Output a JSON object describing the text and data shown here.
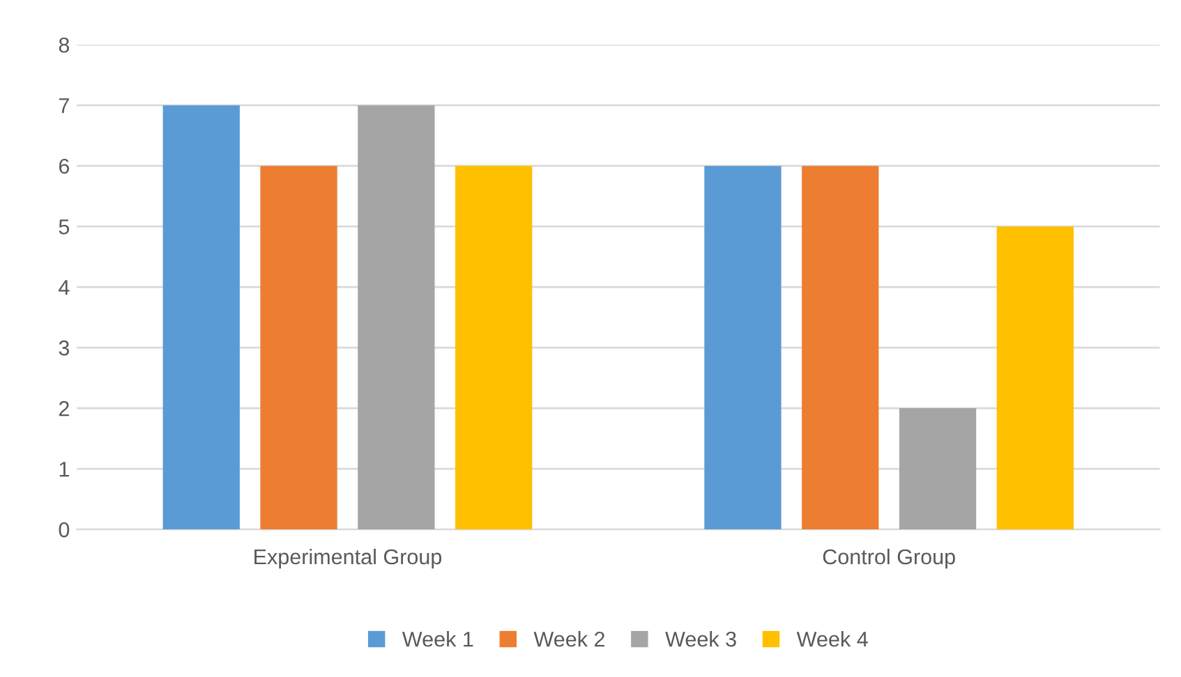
{
  "chart_data": {
    "type": "bar",
    "categories": [
      "Experimental Group",
      "Control Group"
    ],
    "series": [
      {
        "name": "Week 1",
        "color": "#5b9bd5",
        "values": [
          7,
          6
        ]
      },
      {
        "name": "Week 2",
        "color": "#ed7d31",
        "values": [
          6,
          6
        ]
      },
      {
        "name": "Week 3",
        "color": "#a5a5a5",
        "values": [
          7,
          2
        ]
      },
      {
        "name": "Week 4",
        "color": "#ffc000",
        "values": [
          6,
          5
        ]
      }
    ],
    "ylim": [
      0,
      8
    ],
    "yticks": [
      0,
      1,
      2,
      3,
      4,
      5,
      6,
      7,
      8
    ],
    "grid": "y",
    "legend": "bottom"
  }
}
